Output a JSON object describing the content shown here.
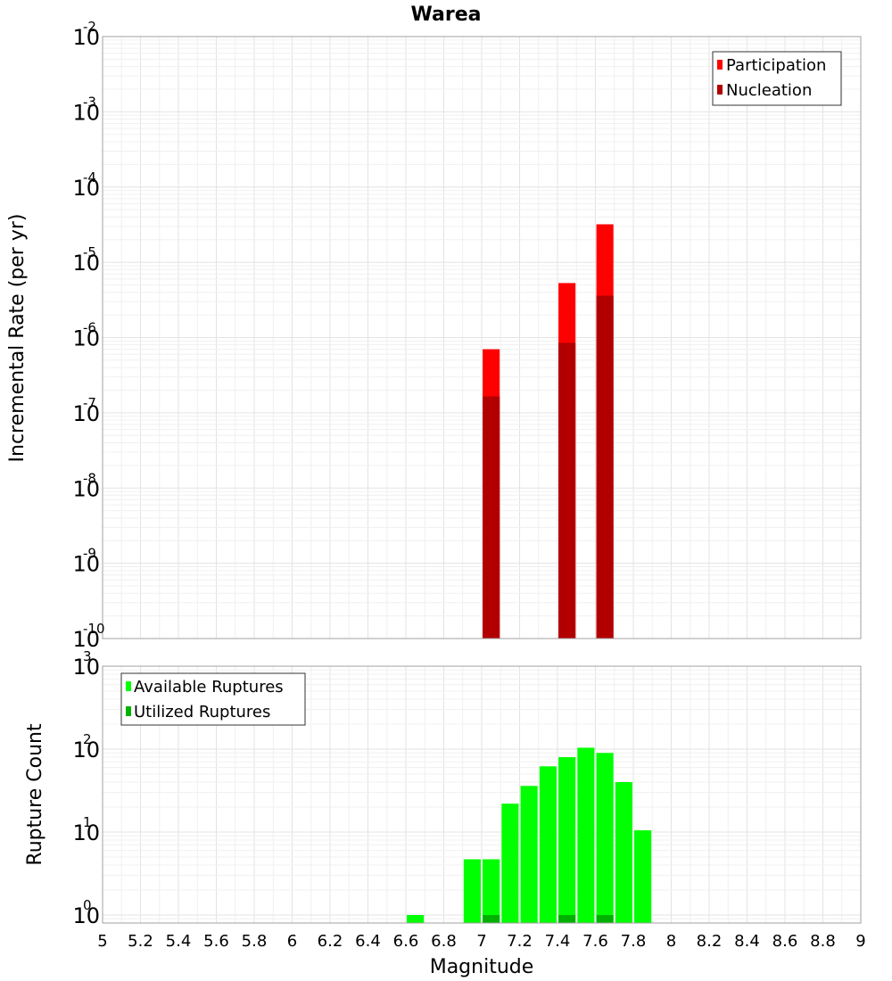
{
  "chart_data": [
    {
      "type": "bar",
      "title": "Warea",
      "xlabel": "",
      "ylabel": "Incremental Rate (per yr)",
      "yscale": "log",
      "ylim": [
        1e-10,
        0.01
      ],
      "xlim": [
        5,
        9
      ],
      "grid": true,
      "legend_position": "top-right",
      "series": [
        {
          "name": "Participation",
          "color": "#ff0000",
          "x": [
            7.05,
            7.45,
            7.65
          ],
          "values": [
            7e-07,
            5.3e-06,
            3.2e-05
          ]
        },
        {
          "name": "Nucleation",
          "color": "#b20000",
          "x": [
            7.05,
            7.45,
            7.65
          ],
          "values": [
            1.65e-07,
            8.5e-07,
            3.6e-06
          ]
        }
      ]
    },
    {
      "type": "bar",
      "title": "",
      "xlabel": "Magnitude",
      "ylabel": "Rupture Count",
      "yscale": "log",
      "ylim": [
        0.8,
        1000
      ],
      "xlim": [
        5,
        9
      ],
      "grid": true,
      "legend_position": "top-left",
      "series": [
        {
          "name": "Available Ruptures",
          "color": "#00ff00",
          "x": [
            6.65,
            6.95,
            7.05,
            7.15,
            7.25,
            7.35,
            7.45,
            7.55,
            7.65,
            7.75,
            7.85
          ],
          "values": [
            1,
            4.7,
            4.7,
            22,
            36,
            62,
            80,
            104,
            90,
            40,
            10.5
          ]
        },
        {
          "name": "Utilized Ruptures",
          "color": "#00b200",
          "x": [
            7.05,
            7.45,
            7.65
          ],
          "values": [
            1,
            1,
            1
          ]
        }
      ]
    }
  ],
  "x_ticks": [
    "5",
    "5.2",
    "5.4",
    "5.6",
    "5.8",
    "6",
    "6.2",
    "6.4",
    "6.6",
    "6.8",
    "7",
    "7.2",
    "7.4",
    "7.6",
    "7.8",
    "8",
    "8.2",
    "8.4",
    "8.6",
    "8.8",
    "9"
  ],
  "top_y_ticks": [
    {
      "base": "10",
      "exp": "-2"
    },
    {
      "base": "10",
      "exp": "-3"
    },
    {
      "base": "10",
      "exp": "-4"
    },
    {
      "base": "10",
      "exp": "-5"
    },
    {
      "base": "10",
      "exp": "-6"
    },
    {
      "base": "10",
      "exp": "-7"
    },
    {
      "base": "10",
      "exp": "-8"
    },
    {
      "base": "10",
      "exp": "-9"
    },
    {
      "base": "10",
      "exp": "-10"
    }
  ],
  "bottom_y_ticks": [
    {
      "base": "10",
      "exp": "3"
    },
    {
      "base": "10",
      "exp": "2"
    },
    {
      "base": "10",
      "exp": "1"
    },
    {
      "base": "10",
      "exp": "0"
    }
  ]
}
